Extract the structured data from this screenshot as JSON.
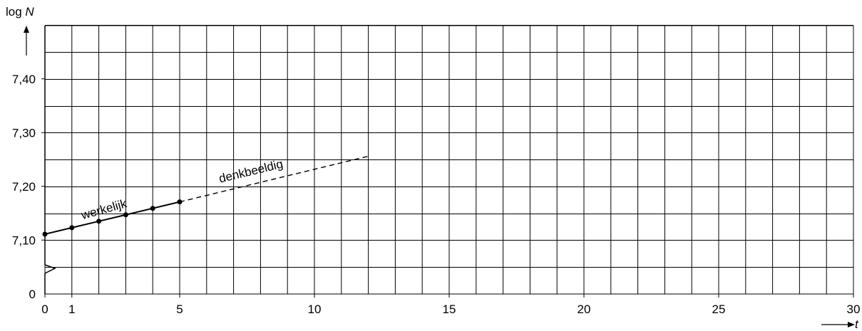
{
  "chart_data": {
    "type": "line",
    "title": "",
    "xlabel": "t",
    "ylabel_prefix": "log",
    "ylabel_var": "N",
    "xlim": [
      0,
      30
    ],
    "ylim": [
      7.05,
      7.5
    ],
    "y_axis_break": true,
    "y_break_label": "0",
    "grid": true,
    "x_grid_step": 1,
    "y_grid_step": 0.05,
    "x_tick_labels": [
      "0",
      "1",
      "5",
      "10",
      "15",
      "20",
      "25",
      "30"
    ],
    "x_tick_values": [
      0,
      1,
      5,
      10,
      15,
      20,
      25,
      30
    ],
    "y_tick_labels": [
      "7,10",
      "7,20",
      "7,30",
      "7,40"
    ],
    "y_tick_values": [
      7.1,
      7.2,
      7.3,
      7.4
    ],
    "series": [
      {
        "name": "werkelijk",
        "style": "solid",
        "markers": true,
        "x": [
          0,
          1,
          2,
          3,
          4,
          5
        ],
        "y": [
          7.111,
          7.123,
          7.135,
          7.147,
          7.159,
          7.171
        ]
      },
      {
        "name": "denkbeeldig",
        "style": "dashed",
        "markers": false,
        "x": [
          5,
          12
        ],
        "y": [
          7.171,
          7.256
        ]
      }
    ]
  }
}
